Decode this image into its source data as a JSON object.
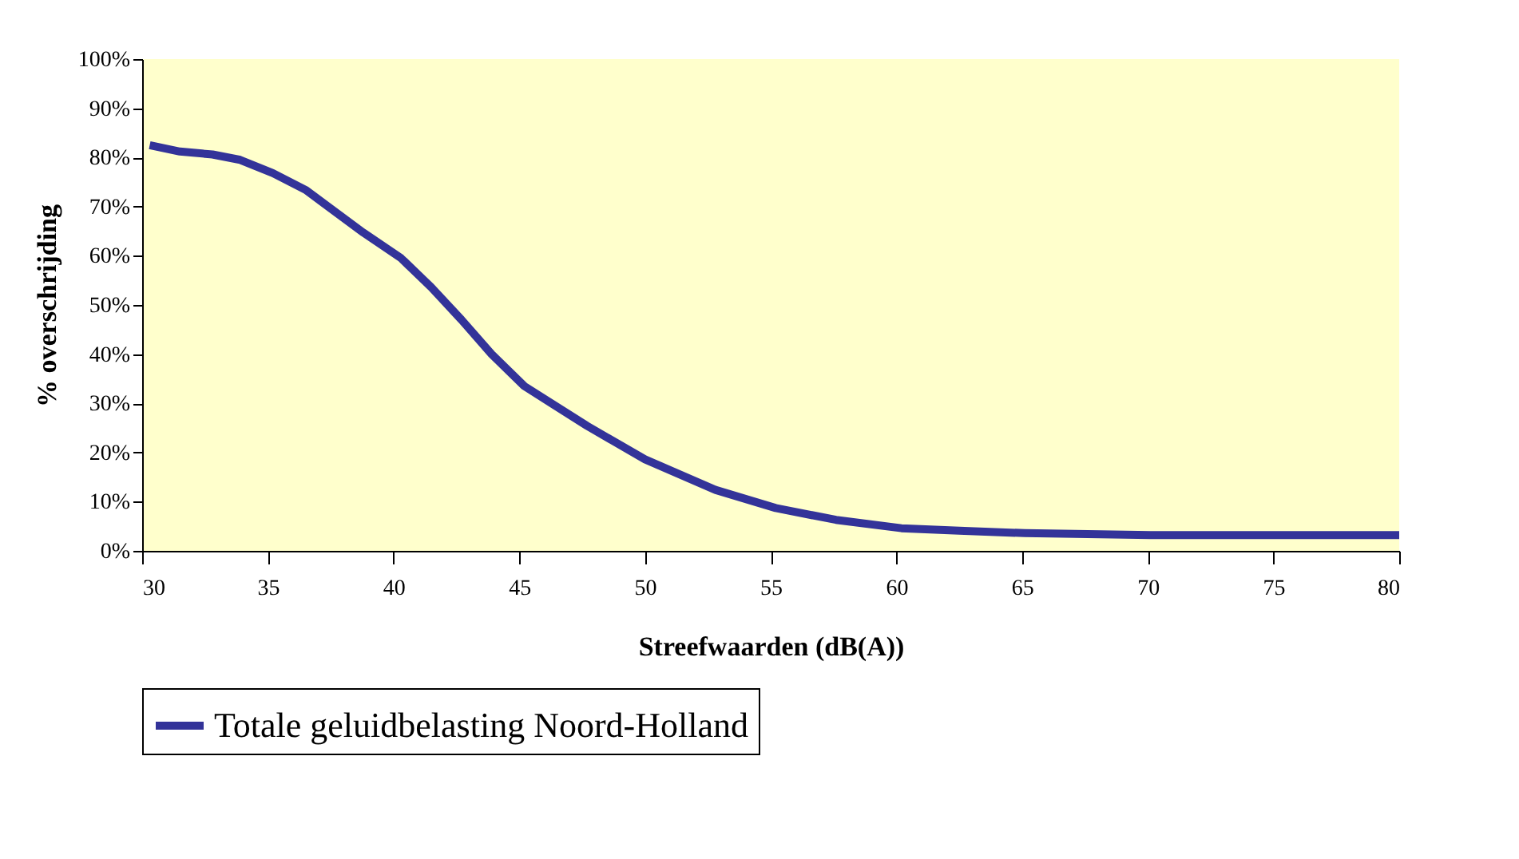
{
  "chart_data": {
    "type": "line",
    "xlabel": "Streefwaarden (dB(A))",
    "ylabel": "% overschrijding",
    "xlim": [
      30,
      80
    ],
    "xticks": [
      30,
      35,
      40,
      45,
      50,
      55,
      60,
      65,
      70,
      75,
      80
    ],
    "ylim": [
      0,
      100
    ],
    "yticks": [
      {
        "value": 0,
        "label": "0%"
      },
      {
        "value": 10,
        "label": "10%"
      },
      {
        "value": 20,
        "label": "20%"
      },
      {
        "value": 30,
        "label": "30%"
      },
      {
        "value": 40,
        "label": "40%"
      },
      {
        "value": 50,
        "label": "50%"
      },
      {
        "value": 60,
        "label": "60%"
      },
      {
        "value": 70,
        "label": "70%"
      },
      {
        "value": 80,
        "label": "80%"
      },
      {
        "value": 90,
        "label": "90%"
      },
      {
        "value": 100,
        "label": "100%"
      }
    ],
    "grid": false,
    "legend": "bottom",
    "marker": "none",
    "line_style": "solid",
    "series": [
      {
        "name": "Totale geluidbelasting Noord-Holland",
        "color": "#333399",
        "x": [
          30.3,
          31.5,
          32.8,
          33.9,
          35.2,
          36.5,
          38.8,
          40.3,
          41.5,
          42.7,
          43.9,
          45.2,
          47.7,
          50.0,
          52.8,
          55.2,
          57.6,
          60.2,
          62.5,
          65.1,
          70.1,
          75,
          80
        ],
        "values": [
          82.5,
          81.2,
          80.6,
          79.5,
          76.8,
          73.4,
          64.7,
          59.5,
          53.6,
          47,
          40,
          33.5,
          25.4,
          18.6,
          12.4,
          8.7,
          6.3,
          4.6,
          4.1,
          3.6,
          3.2,
          3.2,
          3.2
        ]
      }
    ]
  }
}
